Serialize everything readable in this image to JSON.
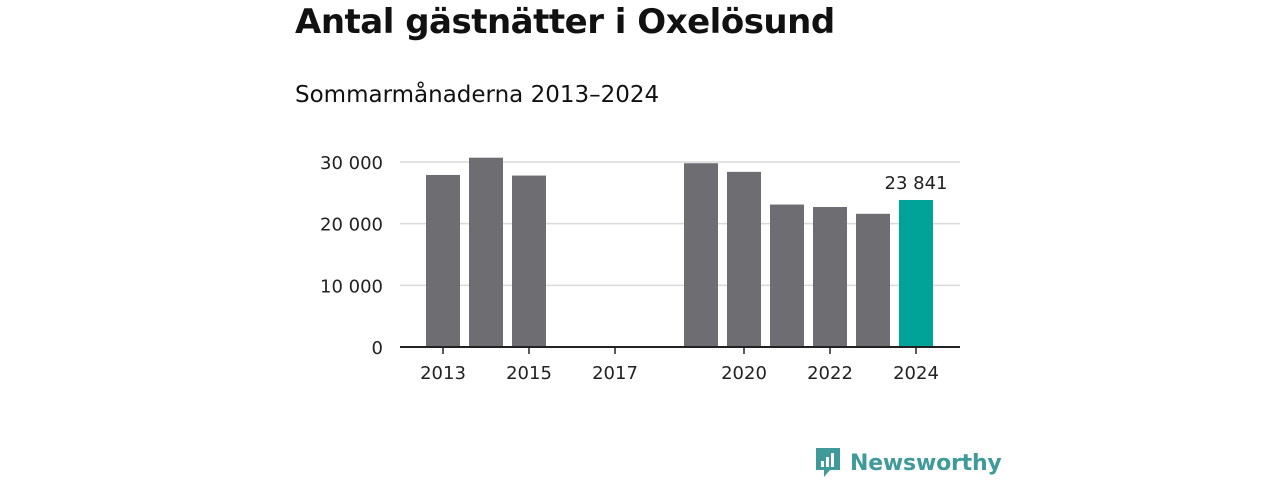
{
  "title": "Antal gästnätter i Oxelösund",
  "subtitle": "Sommarmånaderna 2013–2024",
  "brand": "Newsworthy",
  "colors": {
    "bar": "#6e6d72",
    "highlight": "#00a398",
    "brand": "#3f9a99",
    "grid": "#d9d9d9",
    "axis": "#222222"
  },
  "chart_data": {
    "type": "bar",
    "title": "Antal gästnätter i Oxelösund",
    "subtitle": "Sommarmånaderna 2013–2024",
    "categories": [
      "2013",
      "2014",
      "2015",
      "2016",
      "2017",
      "2018",
      "2019",
      "2020",
      "2021",
      "2022",
      "2023",
      "2024"
    ],
    "values": [
      27900,
      30700,
      27800,
      null,
      null,
      null,
      29800,
      28400,
      23100,
      22700,
      21600,
      23841
    ],
    "highlight_category": "2024",
    "data_labels": [
      {
        "category": "2024",
        "text": "23 841"
      }
    ],
    "yticks": [
      0,
      10000,
      20000,
      30000
    ],
    "ytick_labels": [
      "0",
      "10 000",
      "20 000",
      "30 000"
    ],
    "xtick_labels": [
      "2013",
      "2015",
      "2017",
      "2020",
      "2022",
      "2024"
    ],
    "ylim": [
      0,
      30000
    ],
    "grid": true,
    "legend": false,
    "xlabel": "",
    "ylabel": ""
  }
}
